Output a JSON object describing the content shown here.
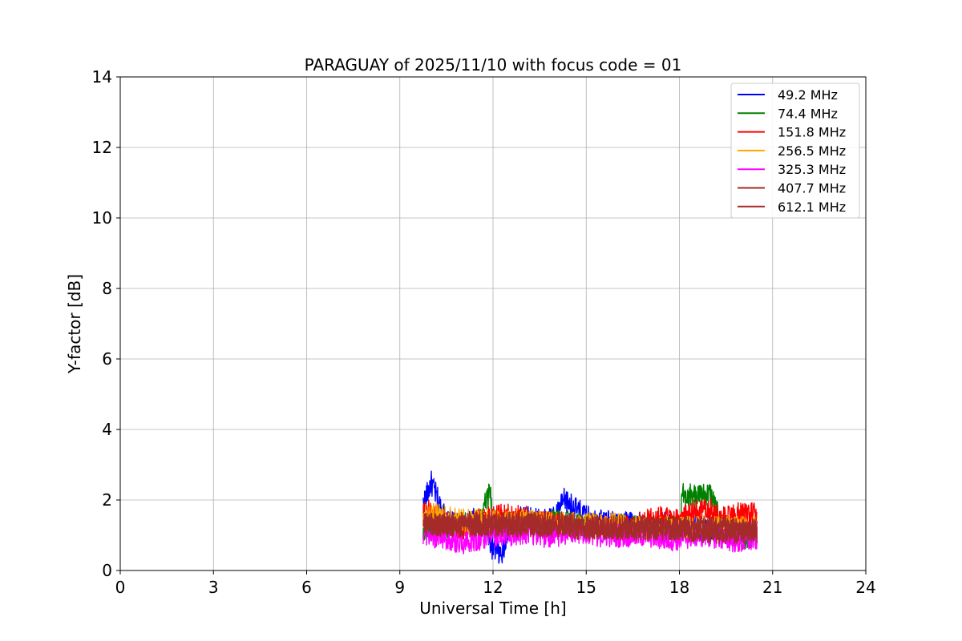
{
  "chart_data": {
    "type": "line",
    "title": "PARAGUAY of 2025/11/10 with focus code = 01",
    "xlabel": "Universal Time [h]",
    "ylabel": "Y-factor [dB]",
    "xlim": [
      0,
      24
    ],
    "ylim": [
      0,
      14
    ],
    "xticks": [
      0,
      3,
      6,
      9,
      12,
      15,
      18,
      21,
      24
    ],
    "yticks": [
      0,
      2,
      4,
      6,
      8,
      10,
      12,
      14
    ],
    "grid": true,
    "legend_position": "top-right",
    "x_range_of_data": [
      9.75,
      20.5
    ],
    "series": [
      {
        "name": " 49.2 MHz",
        "color": "#0000ff",
        "values": [
          [
            9.75,
            1.9
          ],
          [
            9.9,
            2.2
          ],
          [
            10.0,
            2.5
          ],
          [
            10.5,
            1.4
          ],
          [
            11.0,
            1.2
          ],
          [
            11.5,
            1.5
          ],
          [
            12.0,
            0.6
          ],
          [
            12.3,
            0.4
          ],
          [
            12.5,
            1.3
          ],
          [
            13.0,
            1.5
          ],
          [
            13.5,
            1.4
          ],
          [
            14.0,
            1.5
          ],
          [
            14.3,
            2.0
          ],
          [
            15.0,
            1.5
          ],
          [
            15.5,
            1.4
          ],
          [
            16.0,
            1.3
          ],
          [
            16.5,
            1.4
          ],
          [
            17.0,
            1.2
          ],
          [
            17.5,
            1.3
          ],
          [
            18.0,
            1.2
          ],
          [
            18.5,
            1.2
          ],
          [
            19.0,
            1.1
          ],
          [
            19.5,
            1.2
          ],
          [
            20.0,
            1.1
          ],
          [
            20.5,
            1.1
          ]
        ]
      },
      {
        "name": " 74.4 MHz",
        "color": "#008000",
        "values": [
          [
            9.75,
            1.2
          ],
          [
            10.0,
            1.3
          ],
          [
            10.5,
            1.2
          ],
          [
            11.0,
            1.3
          ],
          [
            11.5,
            1.3
          ],
          [
            11.9,
            2.2
          ],
          [
            12.0,
            1.4
          ],
          [
            12.5,
            1.3
          ],
          [
            13.0,
            1.4
          ],
          [
            13.5,
            1.3
          ],
          [
            14.0,
            1.4
          ],
          [
            15.0,
            1.3
          ],
          [
            15.5,
            1.2
          ],
          [
            16.0,
            1.3
          ],
          [
            17.0,
            1.2
          ],
          [
            18.0,
            1.2
          ],
          [
            18.1,
            2.2
          ],
          [
            18.5,
            2.1
          ],
          [
            19.0,
            2.2
          ],
          [
            19.3,
            1.4
          ],
          [
            19.5,
            1.2
          ],
          [
            20.0,
            0.9
          ],
          [
            20.5,
            1.0
          ]
        ]
      },
      {
        "name": "151.8 MHz",
        "color": "#ff0000",
        "values": [
          [
            9.75,
            1.6
          ],
          [
            10.0,
            1.7
          ],
          [
            10.5,
            1.3
          ],
          [
            11.0,
            1.2
          ],
          [
            11.5,
            1.4
          ],
          [
            12.0,
            1.5
          ],
          [
            12.5,
            1.6
          ],
          [
            13.0,
            1.5
          ],
          [
            13.5,
            1.4
          ],
          [
            14.0,
            1.3
          ],
          [
            14.5,
            1.2
          ],
          [
            15.0,
            1.2
          ],
          [
            15.5,
            1.3
          ],
          [
            16.0,
            1.2
          ],
          [
            16.5,
            1.3
          ],
          [
            17.0,
            1.4
          ],
          [
            17.5,
            1.5
          ],
          [
            18.0,
            1.4
          ],
          [
            18.5,
            1.7
          ],
          [
            19.0,
            1.7
          ],
          [
            19.5,
            1.5
          ],
          [
            20.0,
            1.6
          ],
          [
            20.5,
            1.6
          ]
        ]
      },
      {
        "name": "256.5 MHz",
        "color": "#ffa500",
        "values": [
          [
            9.75,
            1.5
          ],
          [
            10.0,
            1.6
          ],
          [
            11.0,
            1.4
          ],
          [
            12.0,
            1.4
          ],
          [
            13.0,
            1.4
          ],
          [
            14.0,
            1.3
          ],
          [
            15.0,
            1.3
          ],
          [
            16.0,
            1.3
          ],
          [
            17.0,
            1.2
          ],
          [
            18.0,
            1.2
          ],
          [
            19.0,
            1.2
          ],
          [
            20.0,
            1.2
          ],
          [
            20.5,
            1.2
          ]
        ]
      },
      {
        "name": "325.3 MHz",
        "color": "#ff00ff",
        "values": [
          [
            9.75,
            1.1
          ],
          [
            10.0,
            1.0
          ],
          [
            10.5,
            0.9
          ],
          [
            11.0,
            0.8
          ],
          [
            11.5,
            0.9
          ],
          [
            12.0,
            1.0
          ],
          [
            12.5,
            1.0
          ],
          [
            13.0,
            1.1
          ],
          [
            13.5,
            1.0
          ],
          [
            14.0,
            1.0
          ],
          [
            14.5,
            1.1
          ],
          [
            15.0,
            1.1
          ],
          [
            15.5,
            1.0
          ],
          [
            16.0,
            1.0
          ],
          [
            16.5,
            1.0
          ],
          [
            17.0,
            1.0
          ],
          [
            17.5,
            0.9
          ],
          [
            18.0,
            0.9
          ],
          [
            18.5,
            1.0
          ],
          [
            19.0,
            1.0
          ],
          [
            19.5,
            0.9
          ],
          [
            20.0,
            0.8
          ],
          [
            20.5,
            0.9
          ]
        ]
      },
      {
        "name": "407.7 MHz",
        "color": "#a52a2a",
        "values": [
          [
            9.75,
            1.4
          ],
          [
            10.0,
            1.3
          ],
          [
            11.0,
            1.3
          ],
          [
            12.0,
            1.3
          ],
          [
            13.0,
            1.3
          ],
          [
            14.0,
            1.3
          ],
          [
            15.0,
            1.2
          ],
          [
            16.0,
            1.2
          ],
          [
            17.0,
            1.2
          ],
          [
            18.0,
            1.2
          ],
          [
            19.0,
            1.1
          ],
          [
            20.0,
            1.1
          ],
          [
            20.5,
            1.1
          ]
        ]
      },
      {
        "name": "612.1 MHz",
        "color": "#a52a2a",
        "values": [
          [
            9.75,
            1.3
          ],
          [
            10.0,
            1.3
          ],
          [
            10.5,
            1.3
          ],
          [
            11.0,
            1.3
          ],
          [
            11.5,
            1.3
          ],
          [
            12.0,
            1.3
          ],
          [
            12.5,
            1.3
          ],
          [
            13.0,
            1.3
          ],
          [
            13.5,
            1.3
          ],
          [
            14.0,
            1.3
          ],
          [
            14.5,
            1.3
          ],
          [
            15.0,
            1.3
          ],
          [
            15.5,
            1.2
          ],
          [
            16.0,
            1.2
          ],
          [
            16.5,
            1.2
          ],
          [
            17.0,
            1.2
          ],
          [
            17.5,
            1.2
          ],
          [
            18.0,
            1.2
          ],
          [
            18.5,
            1.2
          ],
          [
            19.0,
            1.2
          ],
          [
            19.5,
            1.2
          ],
          [
            20.0,
            1.1
          ],
          [
            20.5,
            1.1
          ]
        ]
      }
    ]
  }
}
